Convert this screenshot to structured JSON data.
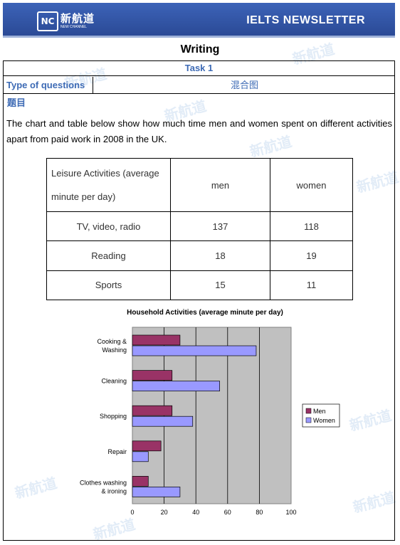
{
  "header": {
    "logo_mark": "NC",
    "logo_cn": "新航道",
    "logo_en": "NEW CHANNEL",
    "newsletter_title": "IELTS NEWSLETTER",
    "brand_color": "#3353a8"
  },
  "page": {
    "title": "Writing",
    "task_label": "Task 1",
    "type_label": "Type of questions",
    "type_value": "混合图",
    "topic_label": "题目",
    "paragraph": "The chart and table below show how much time men and women spent on different activities apart from paid work in 2008 in the UK."
  },
  "table": {
    "header": [
      "Leisure Activities (average minute per day)",
      "men",
      "women"
    ],
    "rows": [
      [
        "TV, video, radio",
        "137",
        "118"
      ],
      [
        "Reading",
        "18",
        "19"
      ],
      [
        "Sports",
        "15",
        "11"
      ]
    ]
  },
  "chart_data": {
    "type": "bar",
    "orientation": "horizontal",
    "title": "Household Activities (average minute per day)",
    "categories": [
      "Cooking & Washing",
      "Cleaning",
      "Shopping",
      "Repair",
      "Clothes washing & ironing"
    ],
    "category_lines": [
      [
        "Cooking &",
        "Washing"
      ],
      [
        "Cleaning"
      ],
      [
        "Shopping"
      ],
      [
        "Repair"
      ],
      [
        "Clothes washing",
        "& ironing"
      ]
    ],
    "series": [
      {
        "name": "Men",
        "values": [
          30,
          25,
          25,
          18,
          10
        ],
        "color": "#993366"
      },
      {
        "name": "Women",
        "values": [
          78,
          55,
          38,
          10,
          30
        ],
        "color": "#9999ff"
      }
    ],
    "xlim": [
      0,
      100
    ],
    "xticks": [
      "0",
      "20",
      "40",
      "60",
      "80",
      "100"
    ],
    "plot_background": "#c0c0c0",
    "grid": true,
    "legend_position": "right"
  }
}
